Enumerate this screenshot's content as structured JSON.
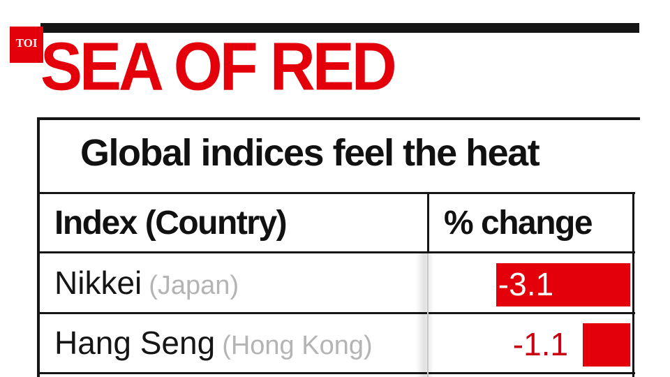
{
  "logo": {
    "text": "TOI"
  },
  "headline": "SEA OF RED",
  "chart_data": {
    "type": "bar",
    "title": "Global indices feel the heat",
    "columns": [
      "Index (Country)",
      "% change"
    ],
    "rows": [
      {
        "index": "Nikkei",
        "country": "(Japan)",
        "value": -3.1,
        "label": "-3.1"
      },
      {
        "index": "Hang Seng",
        "country": "(Hong Kong)",
        "value": -1.1,
        "label": "-1.1"
      }
    ],
    "bar_color": "#e3000b",
    "label_inside_color": "#ffffff",
    "label_outside_color": "#c80010"
  }
}
